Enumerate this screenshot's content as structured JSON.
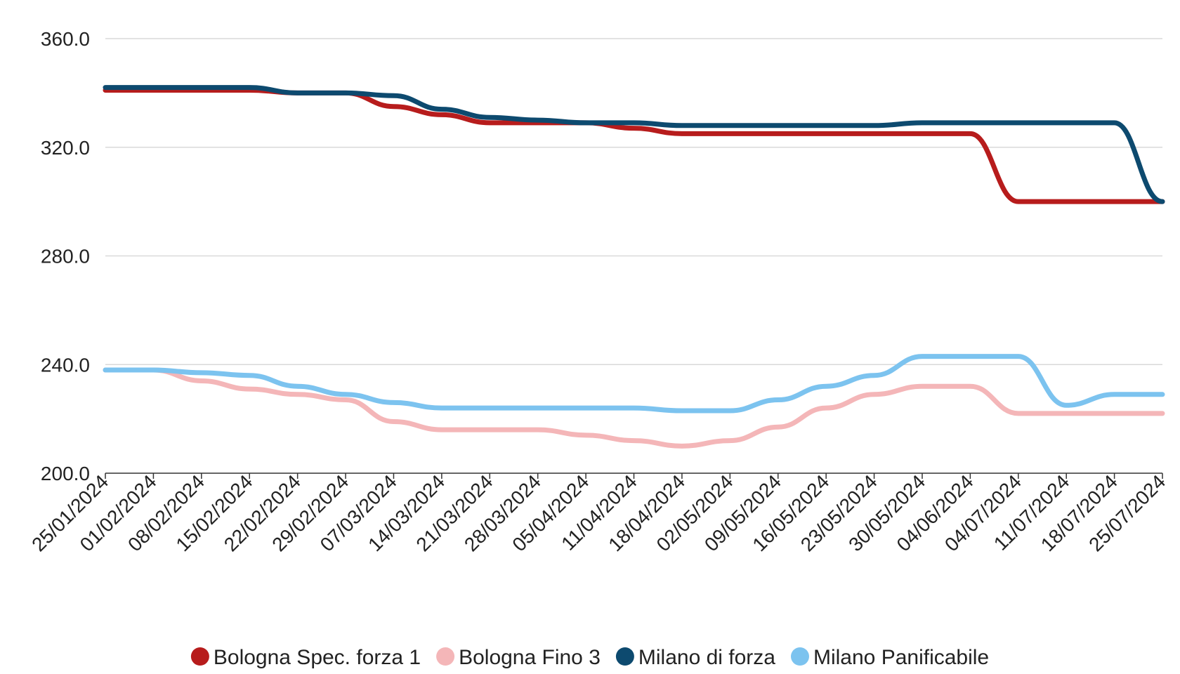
{
  "chart_data": {
    "type": "line",
    "title": "",
    "xlabel": "",
    "ylabel": "",
    "ylim": [
      200,
      360
    ],
    "yticks": [
      "200.0",
      "240.0",
      "280.0",
      "320.0",
      "360.0"
    ],
    "ytick_values": [
      200,
      240,
      280,
      320,
      360
    ],
    "grid": "horizontal",
    "legend_position": "bottom",
    "x": [
      "25/01/2024",
      "01/02/2024",
      "08/02/2024",
      "15/02/2024",
      "22/02/2024",
      "29/02/2024",
      "07/03/2024",
      "14/03/2024",
      "21/03/2024",
      "28/03/2024",
      "05/04/2024",
      "11/04/2024",
      "18/04/2024",
      "02/05/2024",
      "09/05/2024",
      "16/05/2024",
      "23/05/2024",
      "30/05/2024",
      "04/06/2024",
      "04/07/2024",
      "11/07/2024",
      "18/07/2024",
      "25/07/2024"
    ],
    "series": [
      {
        "name": "Bologna Spec. forza 1",
        "color": "#b71c1c",
        "values": [
          341,
          341,
          341,
          341,
          340,
          340,
          335,
          332,
          329,
          329,
          329,
          327,
          325,
          325,
          325,
          325,
          325,
          325,
          325,
          300,
          300,
          300,
          300
        ]
      },
      {
        "name": "Bologna Fino 3",
        "color": "#f4b6b8",
        "values": [
          238,
          238,
          234,
          231,
          229,
          227,
          219,
          216,
          216,
          216,
          214,
          212,
          210,
          212,
          217,
          224,
          229,
          232,
          232,
          222,
          222,
          222,
          222
        ]
      },
      {
        "name": "Milano di forza",
        "color": "#0d4a6f",
        "values": [
          342,
          342,
          342,
          342,
          340,
          340,
          339,
          334,
          331,
          330,
          329,
          329,
          328,
          328,
          328,
          328,
          328,
          329,
          329,
          329,
          329,
          329,
          300
        ]
      },
      {
        "name": "Milano Panificabile",
        "color": "#7cc3ef",
        "values": [
          238,
          238,
          237,
          236,
          232,
          229,
          226,
          224,
          224,
          224,
          224,
          224,
          223,
          223,
          227,
          232,
          236,
          243,
          243,
          243,
          225,
          229,
          229
        ]
      }
    ]
  }
}
